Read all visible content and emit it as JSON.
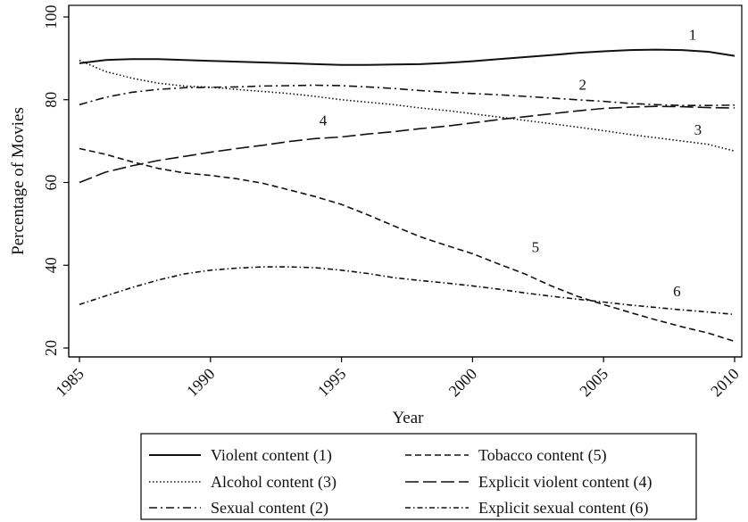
{
  "chart_data": {
    "type": "line",
    "xlabel": "Year",
    "ylabel": "Percentage of Movies",
    "xlim": [
      1985,
      2010
    ],
    "ylim": [
      20,
      100
    ],
    "xticks": [
      "1985",
      "1990",
      "1995",
      "2000",
      "2005",
      "2010"
    ],
    "yticks": [
      "20",
      "40",
      "60",
      "80",
      "100"
    ],
    "grid": false,
    "legend_placement": "bottom",
    "series": [
      {
        "name": "Violent content (1)",
        "curve_label": "1",
        "dash": "solid",
        "x": [
          1985,
          1986,
          1987,
          1988,
          1989,
          1990,
          1991,
          1992,
          1993,
          1994,
          1995,
          1996,
          1997,
          1998,
          1999,
          2000,
          2001,
          2002,
          2003,
          2004,
          2005,
          2006,
          2007,
          2008,
          2009,
          2010
        ],
        "y": [
          88.8,
          89.6,
          89.8,
          89.8,
          89.6,
          89.4,
          89.2,
          89.0,
          88.8,
          88.6,
          88.4,
          88.4,
          88.5,
          88.6,
          88.9,
          89.3,
          89.8,
          90.3,
          90.8,
          91.3,
          91.7,
          92.0,
          92.1,
          92.0,
          91.6,
          90.6
        ]
      },
      {
        "name": "Alcohol content (3)",
        "curve_label": "3",
        "dash": "dotted",
        "x": [
          1985,
          1986,
          1987,
          1988,
          1989,
          1990,
          1991,
          1992,
          1993,
          1994,
          1995,
          1996,
          1997,
          1998,
          1999,
          2000,
          2001,
          2002,
          2003,
          2004,
          2005,
          2006,
          2007,
          2008,
          2009,
          2010
        ],
        "y": [
          89.5,
          86.8,
          85.2,
          84.0,
          83.3,
          83.0,
          82.5,
          82.0,
          81.5,
          80.8,
          80.0,
          79.4,
          78.8,
          78.0,
          77.4,
          76.6,
          75.8,
          75.0,
          74.2,
          73.4,
          72.5,
          71.6,
          70.8,
          70.0,
          69.2,
          67.6
        ]
      },
      {
        "name": "Sexual content (2)",
        "curve_label": "2",
        "dash": "dashdot",
        "x": [
          1985,
          1986,
          1987,
          1988,
          1989,
          1990,
          1991,
          1992,
          1993,
          1994,
          1995,
          1996,
          1997,
          1998,
          1999,
          2000,
          2001,
          2002,
          2003,
          2004,
          2005,
          2006,
          2007,
          2008,
          2009,
          2010
        ],
        "y": [
          78.8,
          80.6,
          81.8,
          82.5,
          82.9,
          83.0,
          83.1,
          83.3,
          83.4,
          83.5,
          83.4,
          83.1,
          82.7,
          82.2,
          81.8,
          81.5,
          81.2,
          80.8,
          80.4,
          80.0,
          79.6,
          79.1,
          78.8,
          78.6,
          78.6,
          78.7
        ]
      },
      {
        "name": "Tobacco content (5)",
        "curve_label": "5",
        "dash": "shortdash",
        "x": [
          1985,
          1986,
          1987,
          1988,
          1989,
          1990,
          1991,
          1992,
          1993,
          1994,
          1995,
          1996,
          1997,
          1998,
          1999,
          2000,
          2001,
          2002,
          2003,
          2004,
          2005,
          2006,
          2007,
          2008,
          2009,
          2010
        ],
        "y": [
          68.2,
          66.8,
          65.0,
          63.4,
          62.3,
          61.7,
          60.9,
          59.8,
          58.2,
          56.6,
          54.7,
          52.2,
          49.5,
          46.9,
          44.8,
          42.8,
          40.3,
          37.9,
          35.0,
          32.5,
          30.5,
          28.6,
          26.8,
          25.1,
          23.6,
          21.6
        ]
      },
      {
        "name": "Explicit violent content (4)",
        "curve_label": "4",
        "dash": "longdash",
        "x": [
          1985,
          1986,
          1987,
          1988,
          1989,
          1990,
          1991,
          1992,
          1993,
          1994,
          1995,
          1996,
          1997,
          1998,
          1999,
          2000,
          2001,
          2002,
          2003,
          2004,
          2005,
          2006,
          2007,
          2008,
          2009,
          2010
        ],
        "y": [
          60.0,
          62.5,
          64.0,
          65.3,
          66.3,
          67.3,
          68.2,
          69.0,
          69.9,
          70.6,
          71.0,
          71.7,
          72.3,
          73.0,
          73.6,
          74.4,
          75.2,
          75.9,
          76.6,
          77.3,
          77.9,
          78.2,
          78.4,
          78.3,
          78.1,
          78.0
        ]
      },
      {
        "name": "Explicit sexual content (6)",
        "curve_label": "6",
        "dash": "dashdotdot",
        "x": [
          1985,
          1986,
          1987,
          1988,
          1989,
          1990,
          1991,
          1992,
          1993,
          1994,
          1995,
          1996,
          1997,
          1998,
          1999,
          2000,
          2001,
          2002,
          2003,
          2004,
          2005,
          2006,
          2007,
          2008,
          2009,
          2010
        ],
        "y": [
          30.5,
          32.6,
          34.6,
          36.4,
          37.9,
          38.8,
          39.3,
          39.6,
          39.6,
          39.4,
          38.8,
          38.0,
          37.0,
          36.3,
          35.7,
          35.0,
          34.2,
          33.3,
          32.5,
          31.8,
          31.1,
          30.4,
          29.8,
          29.2,
          28.7,
          28.1
        ]
      }
    ]
  }
}
